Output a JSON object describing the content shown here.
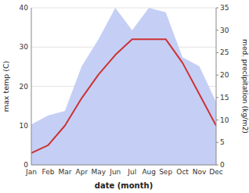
{
  "chart_data": {
    "type": "line",
    "x_label": "date (month)",
    "y_label": "max temp (C)",
    "y2_label": "med. precipitation (kg/m2)",
    "categories": [
      "Jan",
      "Feb",
      "Mar",
      "Apr",
      "May",
      "Jun",
      "Jul",
      "Aug",
      "Sep",
      "Oct",
      "Nov",
      "Dec"
    ],
    "series": [
      {
        "type": "area",
        "axis": "y2",
        "color": "#c5cff5",
        "values": [
          9,
          11,
          12,
          22,
          28,
          35,
          30,
          35,
          34,
          24,
          22,
          14
        ]
      },
      {
        "type": "line",
        "color": "#cc3333",
        "values": [
          3,
          5,
          10,
          17,
          23,
          28,
          32,
          32,
          32,
          26,
          18,
          10
        ]
      }
    ],
    "ylim": [
      0,
      40
    ],
    "yticks": [
      0,
      10,
      20,
      30,
      40
    ],
    "y2lim": [
      0,
      35
    ],
    "y2ticks": [
      0,
      5,
      10,
      15,
      20,
      25,
      30,
      35
    ],
    "grid": true
  }
}
